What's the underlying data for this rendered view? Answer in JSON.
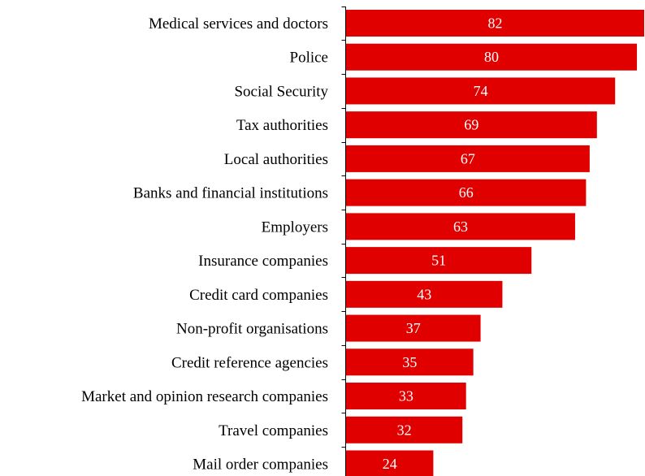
{
  "chart_data": {
    "type": "bar",
    "orientation": "horizontal",
    "categories": [
      "Medical services and doctors",
      "Police",
      "Social Security",
      "Tax authorities",
      "Local authorities",
      "Banks and financial institutions",
      "Employers",
      "Insurance companies",
      "Credit card companies",
      "Non-profit organisations",
      "Credit reference agencies",
      "Market and opinion research companies",
      "Travel companies",
      "Mail order companies"
    ],
    "values": [
      82,
      80,
      74,
      69,
      67,
      66,
      63,
      51,
      43,
      37,
      35,
      33,
      32,
      24
    ],
    "xlim": [
      0,
      82
    ],
    "grid": false,
    "legend": "none",
    "data_labels": "inside",
    "colors": {
      "bar": "#E00000",
      "value_text": "#FFFFFF",
      "category_text": "#000000",
      "axis": "#000000"
    }
  }
}
